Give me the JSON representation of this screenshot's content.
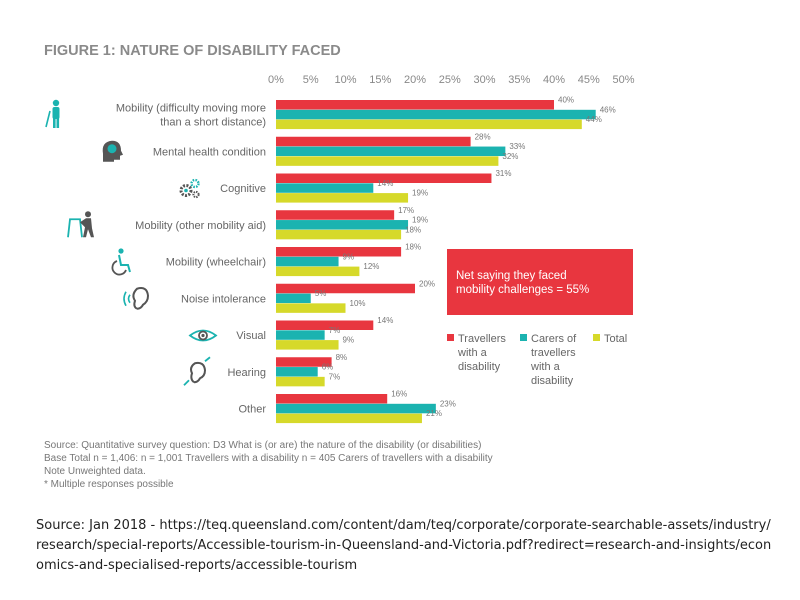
{
  "chart_data": {
    "type": "bar",
    "orientation": "horizontal",
    "title": "FIGURE 1: NATURE OF DISABILITY FACED",
    "xlim": [
      0,
      50
    ],
    "xticks": [
      "0%",
      "5%",
      "10%",
      "15%",
      "20%",
      "25%",
      "30%",
      "35%",
      "40%",
      "45%",
      "50%"
    ],
    "categories": [
      [
        "Mobility (difficulty moving more",
        "than a short distance)"
      ],
      [
        "Mental health condition"
      ],
      [
        "Cognitive"
      ],
      [
        "Mobility (other mobility aid)"
      ],
      [
        "Mobility (wheelchair)"
      ],
      [
        "Noise intolerance"
      ],
      [
        "Visual"
      ],
      [
        "Hearing"
      ],
      [
        "Other"
      ]
    ],
    "category_icons": [
      "person-with-cane-icon",
      "head-brain-icon",
      "gears-icon",
      "walker-icon",
      "wheelchair-icon",
      "ear-sound-icon",
      "eye-icon",
      "hearing-icon",
      "none"
    ],
    "series": [
      {
        "name": [
          "Travellers",
          "with a",
          "disability"
        ],
        "color": "#e8363f",
        "values": [
          40,
          28,
          31,
          17,
          18,
          20,
          14,
          8,
          16
        ],
        "labels": [
          "40%",
          "28%",
          "31%",
          "17%",
          "18%",
          "20%",
          "14%",
          "8%",
          "16%"
        ]
      },
      {
        "name": [
          "Carers of",
          "travellers",
          "with a",
          "disability"
        ],
        "color": "#1bb3b0",
        "values": [
          46,
          33,
          14,
          19,
          9,
          5,
          7,
          6,
          23
        ],
        "labels": [
          "46%",
          "33%",
          "14%",
          "19%",
          "9%",
          "5%",
          "7%",
          "6%",
          "23%"
        ]
      },
      {
        "name": [
          "Total"
        ],
        "color": "#d6d92a",
        "values": [
          44,
          32,
          19,
          18,
          12,
          10,
          9,
          7,
          21
        ],
        "labels": [
          "44%",
          "32%",
          "19%",
          "18%",
          "12%",
          "10%",
          "9%",
          "7%",
          "21%"
        ]
      }
    ],
    "callout": {
      "lines": [
        "Net saying they faced",
        "mobility challenges = 55%"
      ],
      "color": "#e8363f"
    },
    "grid": false,
    "legend_position": "right"
  },
  "notes": [
    "Source: Quantitative survey question: D3 What is (or are) the nature of the disability (or disabilities)",
    "Base Total n = 1,406: n = 1,001 Travellers with a disability n = 405 Carers of travellers with a disability",
    "Note Unweighted data.",
    "* Multiple responses possible"
  ],
  "source": "Source: Jan 2018 - https://teq.queensland.com/content/dam/teq/corporate/corporate-searchable-assets/industry/research/special-reports/Accessible-tourism-in-Queensland-and-Victoria.pdf?redirect=research-and-insights/economics-and-specialised-reports/accessible-tourism"
}
